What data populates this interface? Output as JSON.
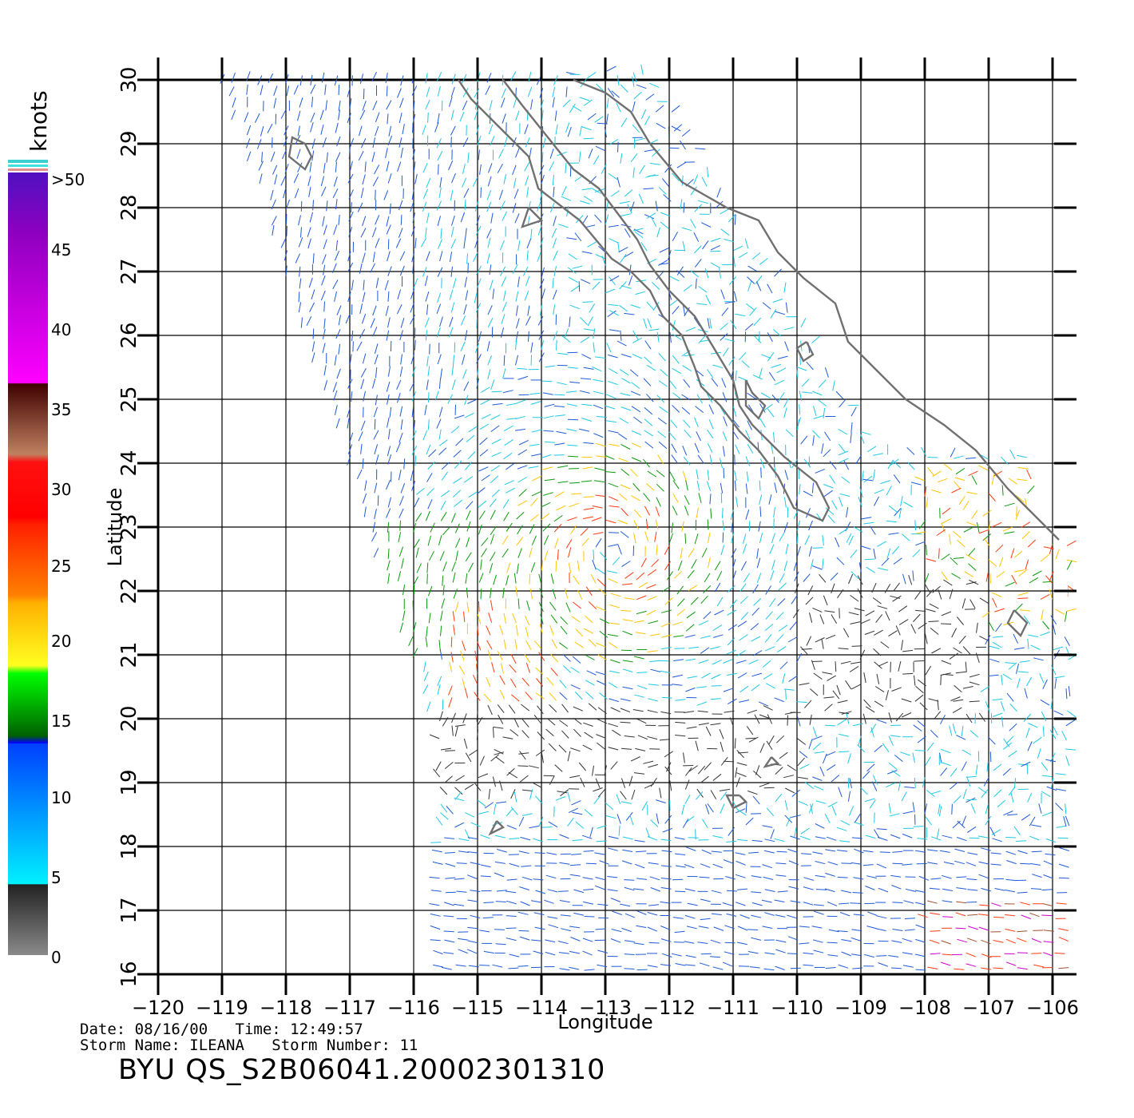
{
  "map": {
    "axes": {
      "xlabel": "Longitude",
      "ylabel": "Latitude",
      "lon_range": [
        -120,
        -105.4
      ],
      "lat_range": [
        16,
        30
      ],
      "lon_ticks": [
        "−120",
        "−119",
        "−118",
        "−117",
        "−116",
        "−115",
        "−114",
        "−113",
        "−112",
        "−111",
        "−110",
        "−109",
        "−108",
        "−107",
        "−106"
      ],
      "lat_ticks": [
        "16",
        "17",
        "18",
        "19",
        "20",
        "21",
        "22",
        "23",
        "24",
        "25",
        "26",
        "27",
        "28",
        "29",
        "30"
      ],
      "grid": true
    },
    "legend": {
      "unit": "knots",
      "labels": [
        ">50",
        "45",
        "40",
        "35",
        "30",
        "25",
        "20",
        "15",
        "10",
        "5",
        "0"
      ],
      "colors": {
        "calm": "#333333",
        "light": "#1ec8e6",
        "moderate": "#1f5ad6",
        "fresh": "#0a9a0a",
        "strong": "#ffc400",
        "gale": "#ff3a10",
        "storm": "#a05030",
        "violent": "#cc00cc",
        "coast": "#707070"
      }
    }
  },
  "footer": {
    "date_label": "Date:",
    "date": "08/16/00",
    "time_label": "Time:",
    "time": "12:49:57",
    "storm_name_label": "Storm Name:",
    "storm_name": "ILEANA",
    "storm_number_label": "Storm Number:",
    "storm_number": "11",
    "product_id": "BYU QS_S2B06041.20002301310"
  }
}
